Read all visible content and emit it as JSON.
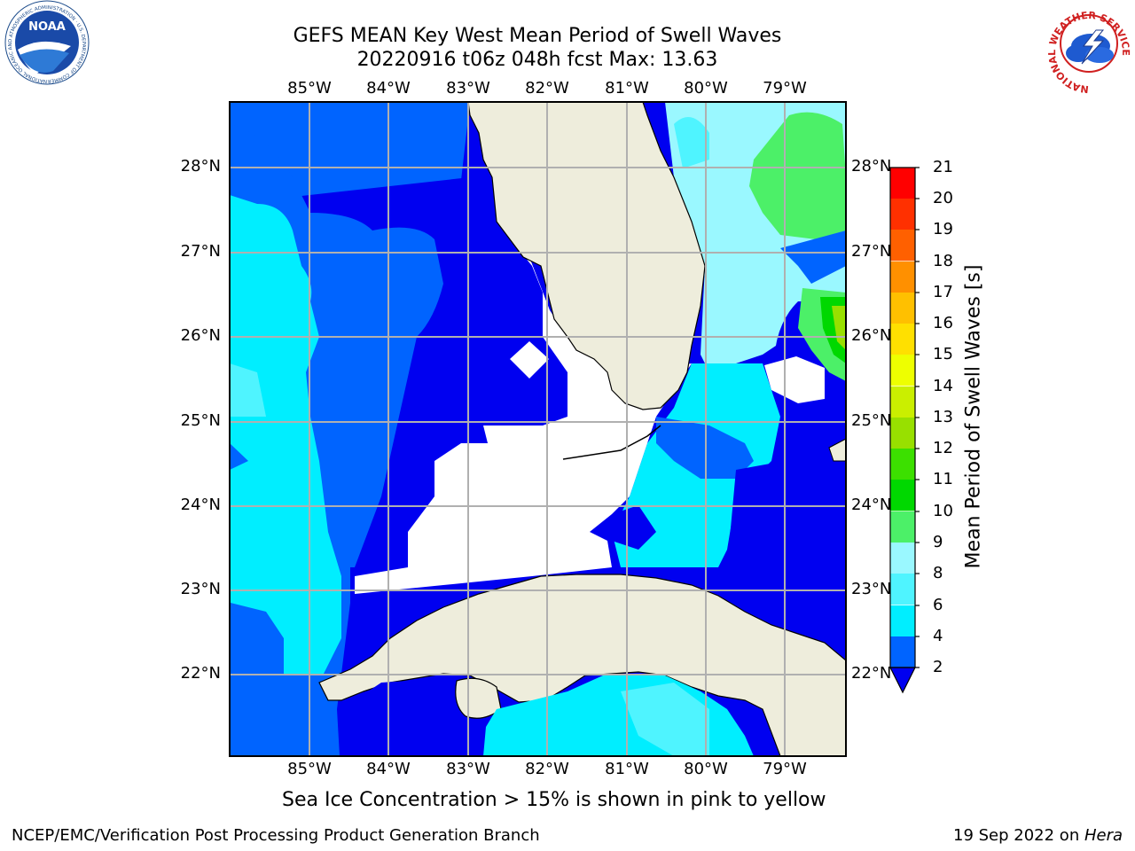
{
  "header": {
    "title_line1": "GEFS MEAN Key West Mean Period of Swell Waves",
    "title_line2": "20220916 t06z 048h fcst   Max: 13.63"
  },
  "logos": {
    "noaa_text": "NOAA",
    "noaa_ring_text": "NATIONAL OCEANIC AND ATMOSPHERIC ADMINISTRATION · U.S. DEPARTMENT OF COMMERCE",
    "nws_ring_text": "NATIONAL WEATHER SERVICE"
  },
  "map": {
    "lon_labels": [
      "85°W",
      "84°W",
      "83°W",
      "82°W",
      "81°W",
      "80°W",
      "79°W"
    ],
    "lat_labels": [
      "28°N",
      "27°N",
      "26°N",
      "25°N",
      "24°N",
      "23°N",
      "22°N"
    ],
    "colors": {
      "land": "#EEEDDC",
      "no_data": "#FFFFFF",
      "grid": "#B0B0B0"
    }
  },
  "colorbar": {
    "label": "Mean Period of Swell Waves [s]",
    "ticks": [
      "2",
      "4",
      "6",
      "8",
      "9",
      "10",
      "11",
      "12",
      "13",
      "14",
      "15",
      "16",
      "17",
      "18",
      "19",
      "20",
      "21"
    ],
    "colors": [
      "#0000F0",
      "#0064FF",
      "#00EEFF",
      "#4FF4FF",
      "#9AF8FF",
      "#4CF068",
      "#00D800",
      "#3CE000",
      "#98E000",
      "#CAEF00",
      "#EEFF00",
      "#FFE000",
      "#FFC000",
      "#FF9000",
      "#FF6000",
      "#FF3000",
      "#FF0000"
    ]
  },
  "footer": {
    "note": "Sea Ice Concentration > 15% is shown in pink to yellow",
    "credit": "NCEP/EMC/Verification Post Processing Product Generation Branch",
    "date": "19 Sep 2022 on ",
    "host": "Hera"
  }
}
